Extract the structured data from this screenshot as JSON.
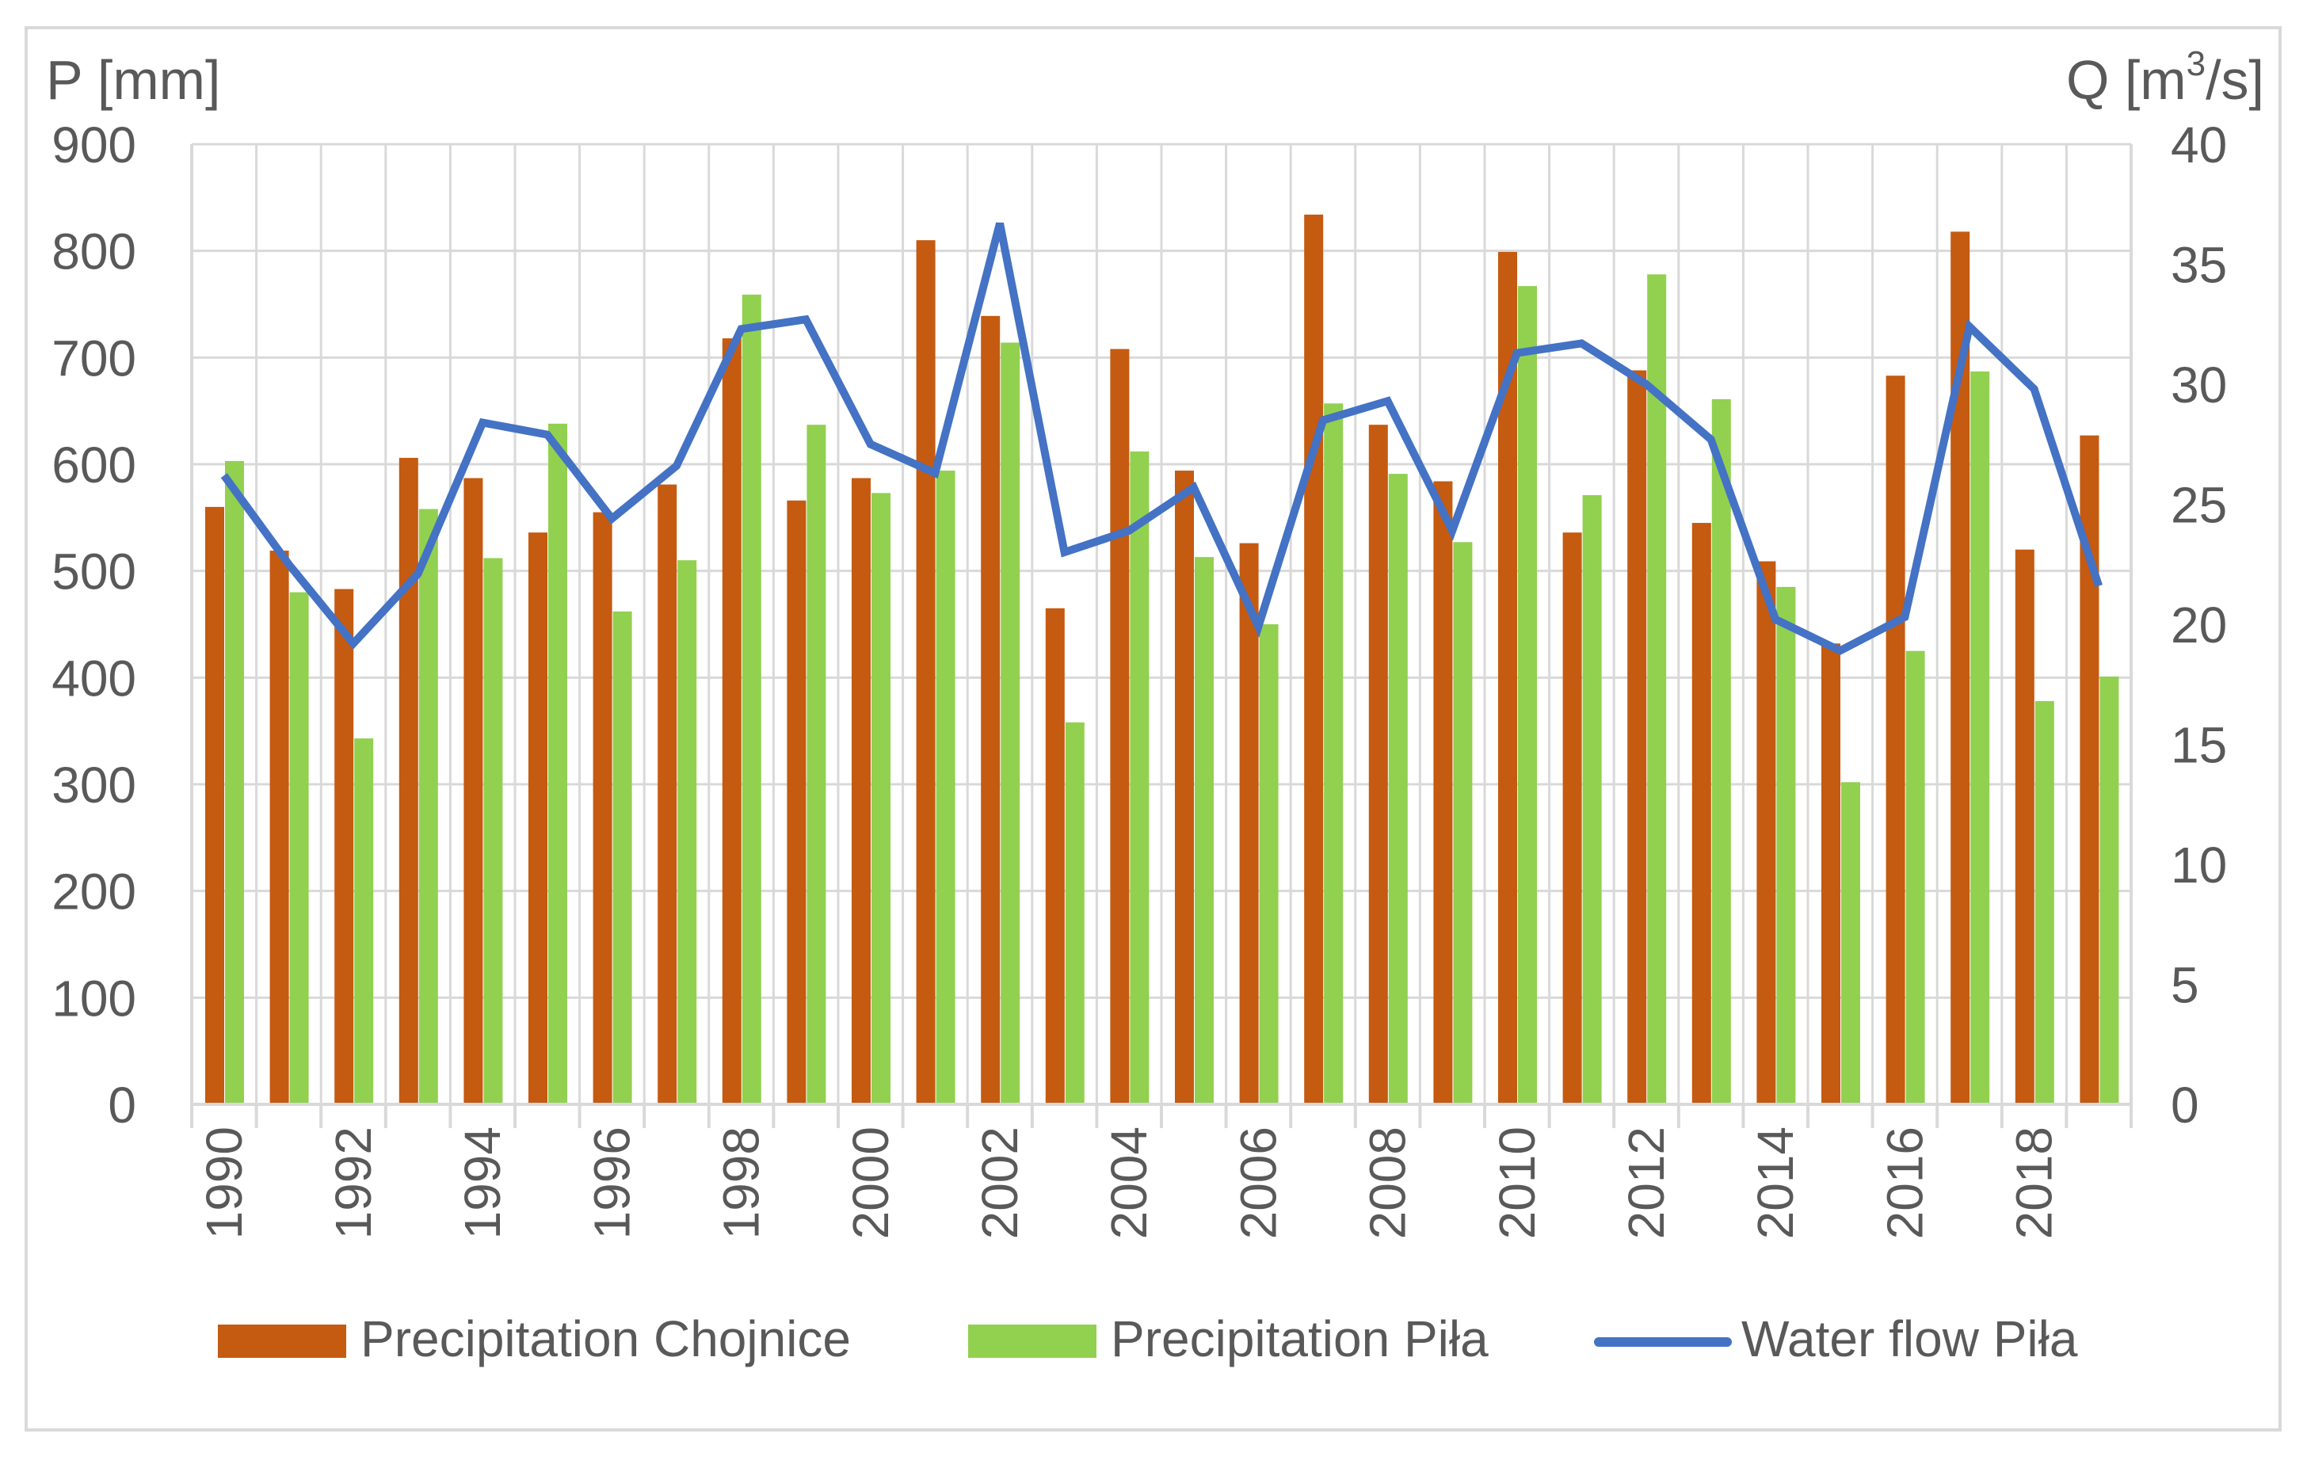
{
  "chart_data": {
    "type": "bar",
    "left_axis_label": "P [mm]",
    "right_axis_label_prefix": "Q [m",
    "right_axis_label_sup": "3",
    "right_axis_label_suffix": "/s]",
    "ylim_left": [
      0,
      900
    ],
    "ylim_right": [
      0,
      40
    ],
    "left_ticks": [
      0,
      100,
      200,
      300,
      400,
      500,
      600,
      700,
      800,
      900
    ],
    "right_ticks": [
      0,
      5,
      10,
      15,
      20,
      25,
      30,
      35,
      40
    ],
    "categories": [
      1990,
      1991,
      1992,
      1993,
      1994,
      1995,
      1996,
      1997,
      1998,
      1999,
      2000,
      2001,
      2002,
      2003,
      2004,
      2005,
      2006,
      2007,
      2008,
      2009,
      2010,
      2011,
      2012,
      2013,
      2014,
      2015,
      2016,
      2017,
      2018,
      2019
    ],
    "x_tick_labels": [
      "1990",
      "1992",
      "1994",
      "1996",
      "1998",
      "2000",
      "2002",
      "2004",
      "2006",
      "2008",
      "2010",
      "2012",
      "2014",
      "2016",
      "2018"
    ],
    "grid": true,
    "legend_position": "bottom",
    "series": [
      {
        "name": "Precipitation Chojnice",
        "kind": "bar",
        "axis": "left",
        "color": "#C55A11",
        "values": [
          560,
          519,
          483,
          606,
          587,
          536,
          555,
          581,
          718,
          566,
          587,
          810,
          739,
          465,
          708,
          594,
          526,
          834,
          637,
          584,
          799,
          536,
          688,
          545,
          509,
          432,
          683,
          818,
          520,
          627
        ]
      },
      {
        "name": "Precipitation Piła",
        "kind": "bar",
        "axis": "left",
        "color": "#92D050",
        "values": [
          603,
          480,
          343,
          558,
          512,
          638,
          462,
          510,
          759,
          637,
          573,
          594,
          714,
          358,
          612,
          513,
          450,
          657,
          591,
          527,
          767,
          571,
          778,
          661,
          485,
          302,
          425,
          687,
          378,
          401
        ]
      },
      {
        "name": "Water flow Piła",
        "kind": "line",
        "axis": "right",
        "color": "#4472C4",
        "values": [
          26.2,
          22.5,
          19.2,
          22.1,
          28.4,
          27.9,
          24.4,
          26.6,
          32.3,
          32.7,
          27.5,
          26.3,
          36.7,
          23.0,
          23.9,
          25.7,
          19.9,
          28.5,
          29.3,
          23.9,
          31.3,
          31.7,
          30.0,
          27.7,
          20.2,
          18.9,
          20.3,
          32.4,
          29.8,
          21.6
        ]
      }
    ]
  }
}
